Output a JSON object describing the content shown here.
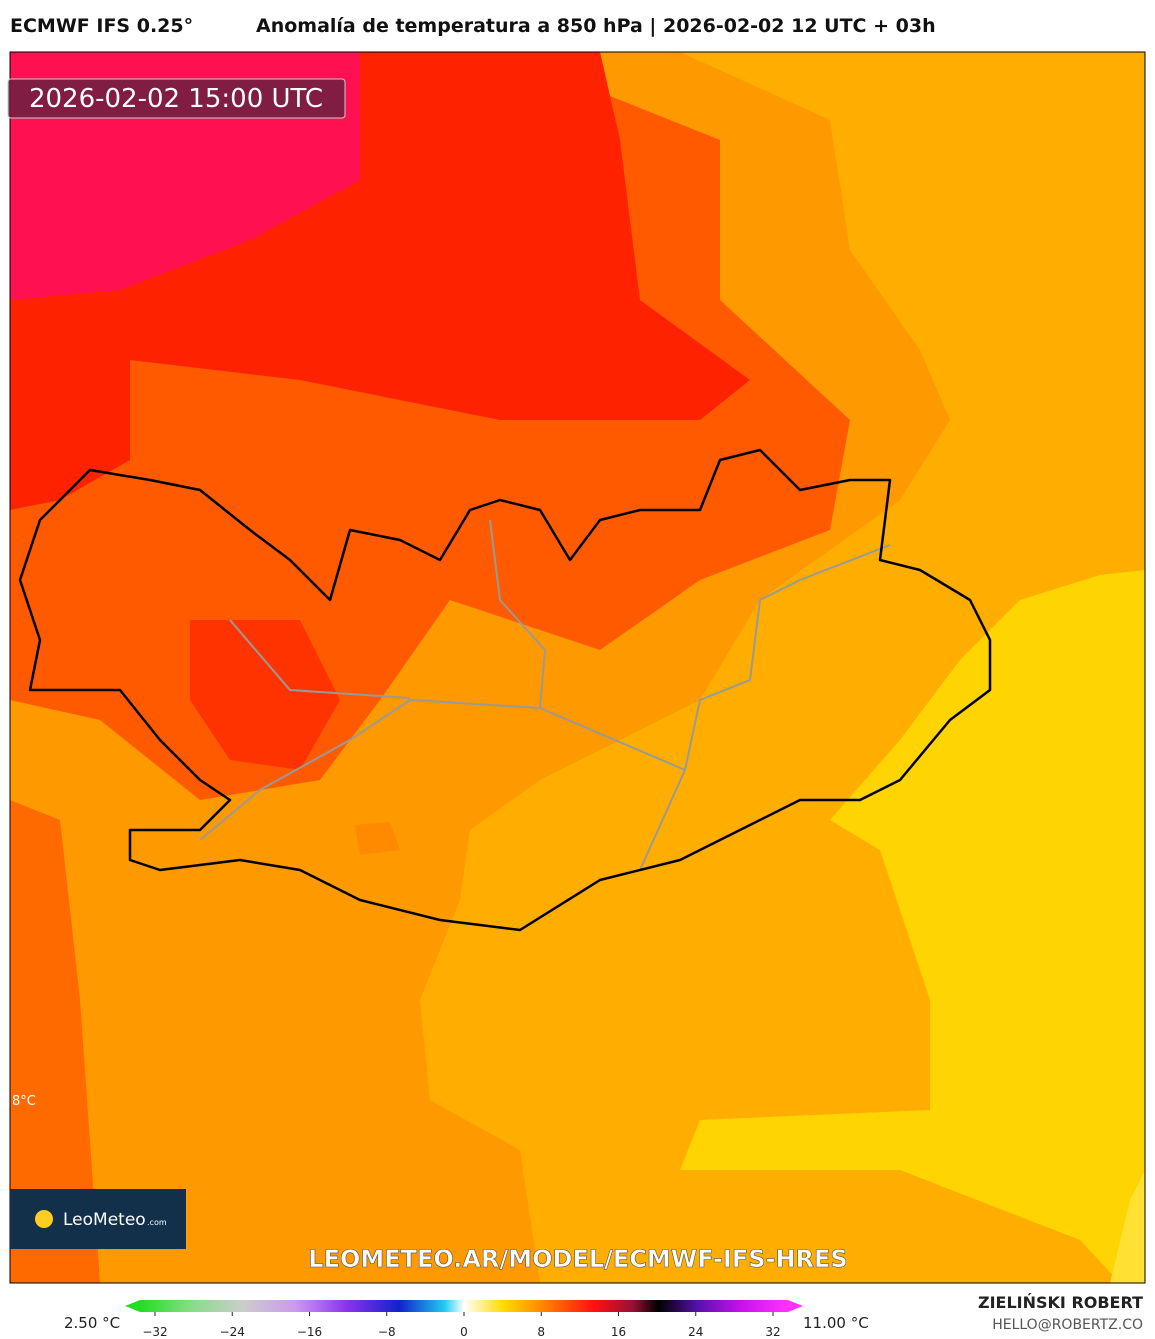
{
  "header": {
    "model": "ECMWF IFS 0.25°",
    "title": "Anomalía de temperatura a 850 hPa | 2026-02-02 12 UTC + 03h"
  },
  "map": {
    "valid_time": "2026-02-02 15:00 UTC",
    "contour_label": "8°C",
    "logo": {
      "name": "LeoMeteo",
      "suffix": ".com"
    },
    "url": "LEOMETEO.AR/MODEL/ECMWF-IFS-HRES"
  },
  "colorbar": {
    "min_label": "2.50 °C",
    "max_label": "11.00 °C",
    "ticks": [
      "−32",
      "−24",
      "−16",
      "−8",
      "0",
      "8",
      "16",
      "24",
      "32"
    ]
  },
  "footer": {
    "author": "ZIELIŃSKI ROBERT",
    "email": "HELLO@ROBERTZ.CO"
  }
}
